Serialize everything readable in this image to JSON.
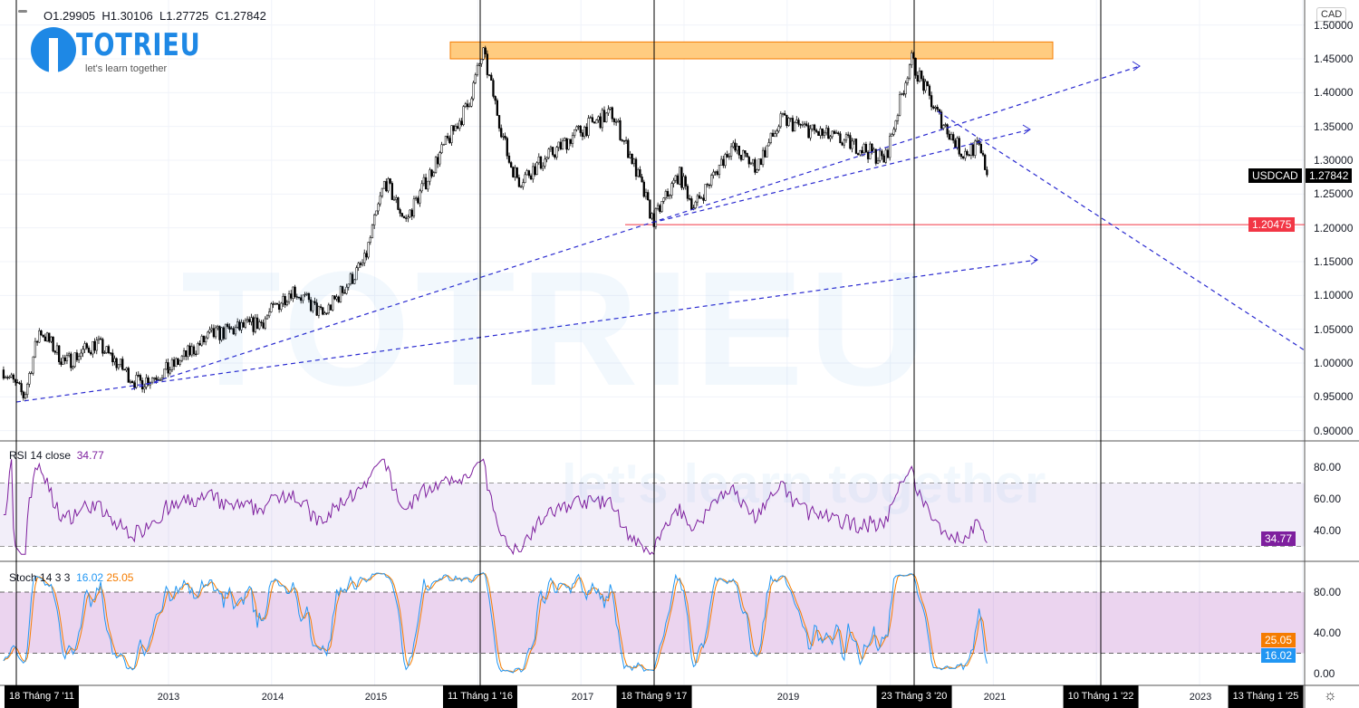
{
  "header": {
    "open": "O1.29905",
    "high": "H1.30106",
    "low": "L1.27725",
    "close": "C1.27842",
    "currency": "CAD"
  },
  "logo": {
    "name": "TOTRIEU",
    "tagline": "let's learn together"
  },
  "price_axis": {
    "ticks": [
      "1.50000",
      "1.45000",
      "1.40000",
      "1.35000",
      "1.30000",
      "1.25000",
      "1.20000",
      "1.15000",
      "1.10000",
      "1.05000",
      "1.00000",
      "0.95000",
      "0.90000"
    ],
    "symbol_label": "USDCAD",
    "last_price": "1.27842",
    "level_label": "1.20475"
  },
  "rsi": {
    "title": "RSI 14 close",
    "value": "34.77",
    "ticks": [
      "80.00",
      "60.00",
      "40.00"
    ],
    "color": "#7e1f9e"
  },
  "stoch": {
    "title": "Stoch 14 3 3",
    "k": "16.02",
    "d": "25.05",
    "ticks": [
      "80.00",
      "40.00",
      "0.00"
    ],
    "k_color": "#2196f3",
    "d_color": "#f57c00"
  },
  "time_axis": {
    "years": [
      "2013",
      "2014",
      "2015",
      "2017",
      "2019",
      "2021",
      "2023"
    ],
    "markers": [
      "18 Tháng 7 '11",
      "11 Tháng 1 '16",
      "18 Tháng 9 '17",
      "23 Tháng 3 '20",
      "10 Tháng 1 '22",
      "13 Tháng 1 '25"
    ]
  },
  "colors": {
    "up": "#000000",
    "down": "#000000",
    "level": "#f23645",
    "trend": "#2a2ad0",
    "zone": "#ffcc80"
  },
  "chart_data": {
    "type": "candlestick",
    "symbol": "USDCAD",
    "timeframe_hint": "weekly",
    "price_keypoints": [
      [
        2011.4,
        0.99
      ],
      [
        2011.6,
        0.95
      ],
      [
        2011.75,
        1.05
      ],
      [
        2012.0,
        1.0
      ],
      [
        2012.3,
        1.03
      ],
      [
        2012.7,
        0.97
      ],
      [
        2013.0,
        0.99
      ],
      [
        2013.4,
        1.04
      ],
      [
        2013.9,
        1.06
      ],
      [
        2014.2,
        1.11
      ],
      [
        2014.5,
        1.07
      ],
      [
        2014.9,
        1.15
      ],
      [
        2015.1,
        1.27
      ],
      [
        2015.3,
        1.21
      ],
      [
        2015.6,
        1.3
      ],
      [
        2015.9,
        1.38
      ],
      [
        2016.05,
        1.46
      ],
      [
        2016.3,
        1.3
      ],
      [
        2016.4,
        1.27
      ],
      [
        2016.8,
        1.32
      ],
      [
        2016.95,
        1.34
      ],
      [
        2017.3,
        1.37
      ],
      [
        2017.5,
        1.3
      ],
      [
        2017.7,
        1.21
      ],
      [
        2017.95,
        1.28
      ],
      [
        2018.1,
        1.23
      ],
      [
        2018.45,
        1.32
      ],
      [
        2018.7,
        1.29
      ],
      [
        2018.95,
        1.36
      ],
      [
        2019.3,
        1.34
      ],
      [
        2019.7,
        1.32
      ],
      [
        2019.95,
        1.3
      ],
      [
        2020.2,
        1.45
      ],
      [
        2020.45,
        1.37
      ],
      [
        2020.7,
        1.31
      ],
      [
        2020.85,
        1.32
      ],
      [
        2020.95,
        1.278
      ]
    ],
    "resistance_zone": [
      1.45,
      1.475
    ],
    "support_level": 1.20475,
    "ylim": [
      0.9,
      1.5
    ]
  }
}
